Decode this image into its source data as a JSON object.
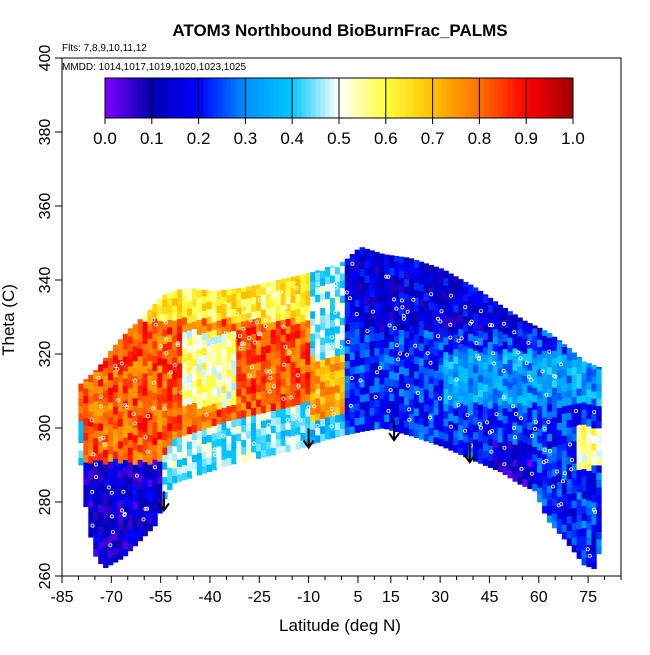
{
  "chart_data": {
    "type": "heatmap",
    "title": "ATOM3 Northbound BioBurnFrac_PALMS",
    "subtitle_flights": "Flts: 7,8,9,10,11,12",
    "subtitle_dates": "MMDD: 1014,1017,1019,1020,1023,1025",
    "xlabel": "Latitude (deg N)",
    "ylabel": "Theta (C)",
    "xlim": [
      -85,
      85
    ],
    "ylim": [
      260,
      400
    ],
    "x_ticks": [
      -85,
      -70,
      -55,
      -40,
      -25,
      -10,
      5,
      15,
      30,
      45,
      60,
      75
    ],
    "x_minor_step": 5,
    "y_ticks": [
      260,
      280,
      300,
      320,
      340,
      360,
      380,
      400
    ],
    "colorbar": {
      "min": 0,
      "max": 1,
      "ticks": [
        "0.0",
        "0.1",
        "0.2",
        "0.3",
        "0.4",
        "0.5",
        "0.6",
        "0.7",
        "0.8",
        "0.9",
        "1.0"
      ],
      "colors": [
        "#7f00ff",
        "#0000b0",
        "#0000ff",
        "#0090ff",
        "#00c8ff",
        "#ffffff",
        "#ffff40",
        "#ffc000",
        "#ff7000",
        "#ff0000",
        "#a00000"
      ]
    },
    "arrows": [
      {
        "lat": -54,
        "theta": 278
      },
      {
        "lat": -10,
        "theta": 295
      },
      {
        "lat": 16,
        "theta": 297
      },
      {
        "lat": 39,
        "theta": 291
      }
    ],
    "region_notes": "Curtain plot: southern mid-latitudes (-80 to -10) mostly 0.7-0.95 at theta 290-330; northern hemisphere mostly 0.1-0.35; low theta south near -70 is 0.1-0.2."
  }
}
